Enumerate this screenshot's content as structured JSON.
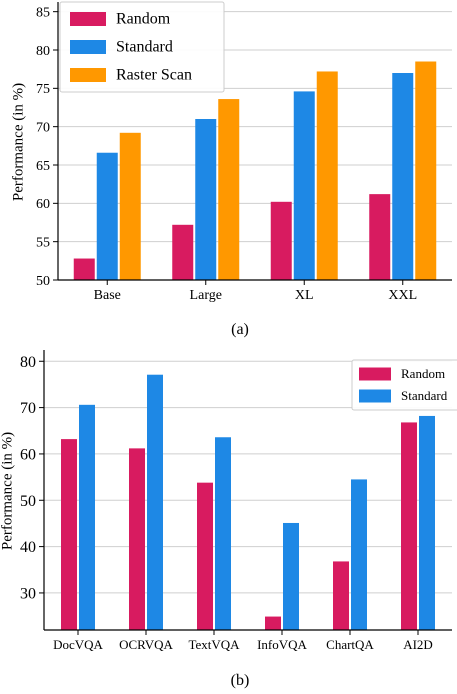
{
  "chart_data": [
    {
      "type": "bar",
      "panel_label": "(a)",
      "categories": [
        "Base",
        "Large",
        "XL",
        "XXL"
      ],
      "ylabel": "Performance (in %)",
      "ylim": [
        50,
        86
      ],
      "yticks": [
        50,
        55,
        60,
        65,
        70,
        75,
        80,
        85
      ],
      "grid": "y",
      "legend_position": "top-left",
      "series": [
        {
          "name": "Random",
          "color": "#d81b60",
          "values": [
            52.8,
            57.2,
            60.2,
            61.2
          ]
        },
        {
          "name": "Standard",
          "color": "#1e88e5",
          "values": [
            66.6,
            71.0,
            74.6,
            77.0
          ]
        },
        {
          "name": "Raster Scan",
          "color": "#ff9800",
          "values": [
            69.2,
            73.6,
            77.2,
            78.5
          ]
        }
      ]
    },
    {
      "type": "bar",
      "panel_label": "(b)",
      "categories": [
        "DocVQA",
        "OCRVQA",
        "TextVQA",
        "InfoVQA",
        "ChartQA",
        "AI2D"
      ],
      "ylabel": "Performance (in %)",
      "ylim": [
        22,
        82
      ],
      "yticks": [
        30,
        40,
        50,
        60,
        70,
        80
      ],
      "grid": "y",
      "legend_position": "top-right",
      "series": [
        {
          "name": "Random",
          "color": "#d81b60",
          "values": [
            63.2,
            61.2,
            53.8,
            24.9,
            36.8,
            66.8
          ]
        },
        {
          "name": "Standard",
          "color": "#1e88e5",
          "values": [
            70.6,
            77.1,
            63.6,
            45.1,
            54.5,
            68.2
          ]
        }
      ]
    }
  ]
}
